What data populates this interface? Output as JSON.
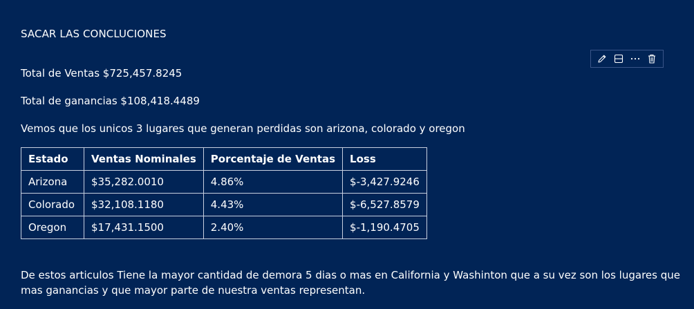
{
  "cell": {
    "heading": "SACAR LAS CONCLUCIONES",
    "total_ventas": "Total de Ventas $725,457.8245",
    "total_ganancias": "Total de ganancias $108,418.4489",
    "observacion": "Vemos que los unicos 3 lugares que generan perdidas son arizona, colorado y oregon",
    "conclusion": "De estos articulos Tiene la mayor cantidad de demora 5 dias o mas en California y Washinton que a su vez son los lugares que mas ganancias y que mayor parte de nuestra ventas representan."
  },
  "toolbar": {
    "icons": [
      "pencil-icon",
      "split-cell-icon",
      "more-icon",
      "trash-icon"
    ]
  },
  "table": {
    "headers": [
      "Estado",
      "Ventas Nominales",
      "Porcentaje de Ventas",
      "Loss"
    ],
    "rows": [
      [
        "Arizona",
        "$35,282.0010",
        "4.86%",
        "$-3,427.9246"
      ],
      [
        "Colorado",
        "$32,108.1180",
        "4.43%",
        "$-6,527.8579"
      ],
      [
        "Oregon",
        "$17,431.1500",
        "2.40%",
        "$-1,190.4705"
      ]
    ]
  },
  "colors": {
    "background": "#012456",
    "text": "#ffffff",
    "table_border": "#c8d0e0",
    "toolbar_border": "#3a5588"
  }
}
